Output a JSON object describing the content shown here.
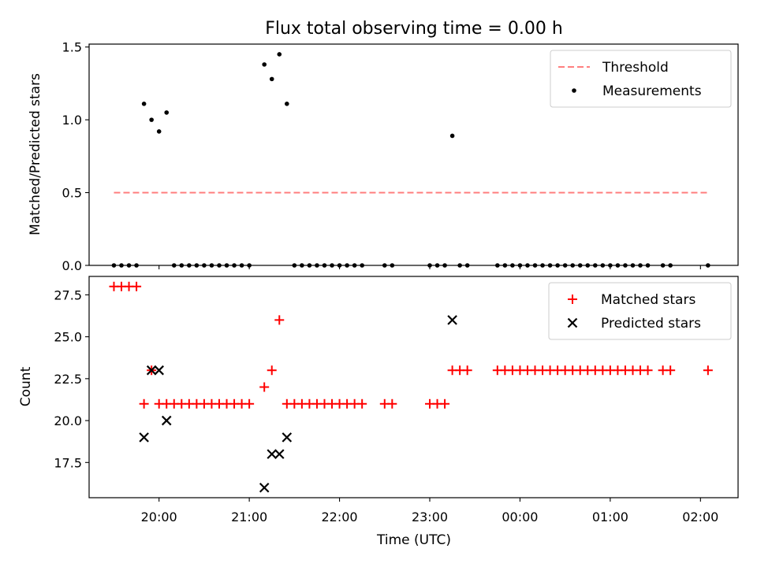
{
  "title": "Flux total observing time = 0.00 h",
  "chart_data": [
    {
      "type": "scatter",
      "title": "Flux total observing time = 0.00 h",
      "xlabel": "",
      "ylabel": "Matched/Predicted stars",
      "ylim": [
        0,
        1.52
      ],
      "yticks": [
        0.0,
        0.5,
        1.0,
        1.5
      ],
      "yticklabels": [
        "0.0",
        "0.5",
        "1.0",
        "1.5"
      ],
      "legend_position": "top-right",
      "threshold": {
        "name": "Threshold",
        "value": 0.5,
        "x_start": "19:30",
        "x_end": "02:05",
        "color": "#ff7f7f",
        "style": "dashed"
      },
      "series": [
        {
          "name": "Measurements",
          "color": "#000000",
          "marker": "dot",
          "points": [
            [
              "19:30",
              0
            ],
            [
              "19:35",
              0
            ],
            [
              "19:40",
              0
            ],
            [
              "19:45",
              0
            ],
            [
              "19:50",
              1.11
            ],
            [
              "19:55",
              1.0
            ],
            [
              "20:00",
              0.92
            ],
            [
              "20:05",
              1.05
            ],
            [
              "20:10",
              0
            ],
            [
              "20:15",
              0
            ],
            [
              "20:20",
              0
            ],
            [
              "20:25",
              0
            ],
            [
              "20:30",
              0
            ],
            [
              "20:35",
              0
            ],
            [
              "20:40",
              0
            ],
            [
              "20:45",
              0
            ],
            [
              "20:50",
              0
            ],
            [
              "20:55",
              0
            ],
            [
              "21:00",
              0
            ],
            [
              "21:10",
              1.38
            ],
            [
              "21:15",
              1.28
            ],
            [
              "21:20",
              1.45
            ],
            [
              "21:25",
              1.11
            ],
            [
              "21:30",
              0
            ],
            [
              "21:35",
              0
            ],
            [
              "21:40",
              0
            ],
            [
              "21:45",
              0
            ],
            [
              "21:50",
              0
            ],
            [
              "21:55",
              0
            ],
            [
              "22:00",
              0
            ],
            [
              "22:05",
              0
            ],
            [
              "22:10",
              0
            ],
            [
              "22:15",
              0
            ],
            [
              "22:30",
              0
            ],
            [
              "22:35",
              0
            ],
            [
              "23:00",
              0
            ],
            [
              "23:05",
              0
            ],
            [
              "23:10",
              0
            ],
            [
              "23:15",
              0.89
            ],
            [
              "23:20",
              0
            ],
            [
              "23:25",
              0
            ],
            [
              "23:45",
              0
            ],
            [
              "23:50",
              0
            ],
            [
              "23:55",
              0
            ],
            [
              "00:00",
              0
            ],
            [
              "00:05",
              0
            ],
            [
              "00:10",
              0
            ],
            [
              "00:15",
              0
            ],
            [
              "00:20",
              0
            ],
            [
              "00:25",
              0
            ],
            [
              "00:30",
              0
            ],
            [
              "00:35",
              0
            ],
            [
              "00:40",
              0
            ],
            [
              "00:45",
              0
            ],
            [
              "00:50",
              0
            ],
            [
              "00:55",
              0
            ],
            [
              "01:00",
              0
            ],
            [
              "01:05",
              0
            ],
            [
              "01:10",
              0
            ],
            [
              "01:15",
              0
            ],
            [
              "01:20",
              0
            ],
            [
              "01:25",
              0
            ],
            [
              "01:35",
              0
            ],
            [
              "01:40",
              0
            ],
            [
              "02:05",
              0
            ]
          ]
        }
      ]
    },
    {
      "type": "scatter",
      "title": "",
      "xlabel": "Time (UTC)",
      "ylabel": "Count",
      "ylim": [
        15.4,
        28.6
      ],
      "yticks": [
        17.5,
        20.0,
        22.5,
        25.0,
        27.5
      ],
      "yticklabels": [
        "17.5",
        "20.0",
        "22.5",
        "25.0",
        "27.5"
      ],
      "xticklabels": [
        "20:00",
        "21:00",
        "22:00",
        "23:00",
        "00:00",
        "01:00",
        "02:00"
      ],
      "legend_position": "top-right",
      "series": [
        {
          "name": "Matched stars",
          "color": "#ff0000",
          "marker": "plus",
          "points": [
            [
              "19:30",
              28
            ],
            [
              "19:35",
              28
            ],
            [
              "19:40",
              28
            ],
            [
              "19:45",
              28
            ],
            [
              "19:50",
              21
            ],
            [
              "19:55",
              23
            ],
            [
              "20:00",
              21
            ],
            [
              "20:05",
              21
            ],
            [
              "20:10",
              21
            ],
            [
              "20:15",
              21
            ],
            [
              "20:20",
              21
            ],
            [
              "20:25",
              21
            ],
            [
              "20:30",
              21
            ],
            [
              "20:35",
              21
            ],
            [
              "20:40",
              21
            ],
            [
              "20:45",
              21
            ],
            [
              "20:50",
              21
            ],
            [
              "20:55",
              21
            ],
            [
              "21:00",
              21
            ],
            [
              "21:10",
              22
            ],
            [
              "21:15",
              23
            ],
            [
              "21:20",
              26
            ],
            [
              "21:25",
              21
            ],
            [
              "21:30",
              21
            ],
            [
              "21:35",
              21
            ],
            [
              "21:40",
              21
            ],
            [
              "21:45",
              21
            ],
            [
              "21:50",
              21
            ],
            [
              "21:55",
              21
            ],
            [
              "22:00",
              21
            ],
            [
              "22:05",
              21
            ],
            [
              "22:10",
              21
            ],
            [
              "22:15",
              21
            ],
            [
              "22:30",
              21
            ],
            [
              "22:35",
              21
            ],
            [
              "23:00",
              21
            ],
            [
              "23:05",
              21
            ],
            [
              "23:10",
              21
            ],
            [
              "23:15",
              23
            ],
            [
              "23:20",
              23
            ],
            [
              "23:25",
              23
            ],
            [
              "23:45",
              23
            ],
            [
              "23:50",
              23
            ],
            [
              "23:55",
              23
            ],
            [
              "00:00",
              23
            ],
            [
              "00:05",
              23
            ],
            [
              "00:10",
              23
            ],
            [
              "00:15",
              23
            ],
            [
              "00:20",
              23
            ],
            [
              "00:25",
              23
            ],
            [
              "00:30",
              23
            ],
            [
              "00:35",
              23
            ],
            [
              "00:40",
              23
            ],
            [
              "00:45",
              23
            ],
            [
              "00:50",
              23
            ],
            [
              "00:55",
              23
            ],
            [
              "01:00",
              23
            ],
            [
              "01:05",
              23
            ],
            [
              "01:10",
              23
            ],
            [
              "01:15",
              23
            ],
            [
              "01:20",
              23
            ],
            [
              "01:25",
              23
            ],
            [
              "01:35",
              23
            ],
            [
              "01:40",
              23
            ],
            [
              "02:05",
              23
            ]
          ]
        },
        {
          "name": "Predicted stars",
          "color": "#000000",
          "marker": "x",
          "points": [
            [
              "19:50",
              19
            ],
            [
              "19:55",
              23
            ],
            [
              "20:00",
              23
            ],
            [
              "20:05",
              20
            ],
            [
              "21:10",
              16
            ],
            [
              "21:15",
              18
            ],
            [
              "21:20",
              18
            ],
            [
              "21:25",
              19
            ],
            [
              "23:15",
              26
            ]
          ]
        }
      ]
    }
  ]
}
